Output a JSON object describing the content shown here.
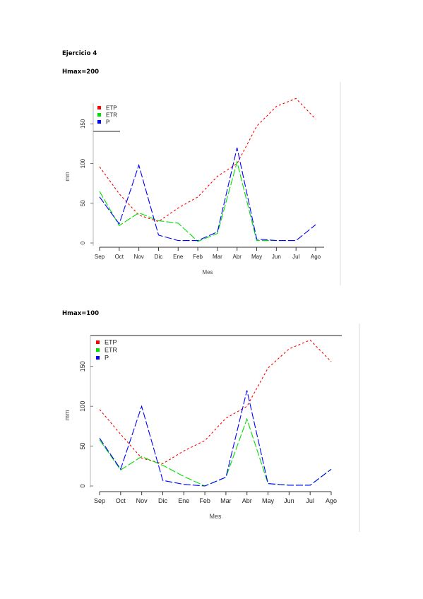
{
  "document": {
    "exercise_title": "Ejercicio 4",
    "section_1": "Hmax=200",
    "section_2": "Hmax=100"
  },
  "chart_data": [
    {
      "type": "line",
      "categories": [
        "Sep",
        "Oct",
        "Nov",
        "Dic",
        "Ene",
        "Feb",
        "Mar",
        "Abr",
        "May",
        "Jun",
        "Jul",
        "Ago"
      ],
      "xlabel": "Mes",
      "ylabel": "mm",
      "yticks": [
        0,
        50,
        100,
        150
      ],
      "ylim": [
        0,
        185
      ],
      "legend_position": "top-left",
      "grid": false,
      "series": [
        {
          "name": "ETP",
          "color": "#ff0000",
          "dash": "3,3",
          "values": [
            96,
            62,
            35,
            27,
            44,
            58,
            84,
            100,
            147,
            172,
            182,
            156
          ]
        },
        {
          "name": "ETR",
          "color": "#00dd00",
          "dash": "10,3",
          "values": [
            65,
            22,
            38,
            28,
            25,
            2,
            12,
            102,
            3,
            3,
            null,
            24
          ]
        },
        {
          "name": "P",
          "color": "#0000ff",
          "dash": "10,3",
          "values": [
            58,
            24,
            98,
            10,
            3,
            3,
            14,
            120,
            5,
            3,
            3,
            23
          ]
        }
      ]
    },
    {
      "type": "line",
      "categories": [
        "Sep",
        "Oct",
        "Nov",
        "Dic",
        "Ene",
        "Feb",
        "Mar",
        "Abr",
        "May",
        "Jun",
        "Jul",
        "Ago"
      ],
      "xlabel": "Mes",
      "ylabel": "mm",
      "yticks": [
        0,
        50,
        100,
        150
      ],
      "ylim": [
        0,
        195
      ],
      "legend_position": "top-left",
      "grid": false,
      "series": [
        {
          "name": "ETP",
          "color": "#ff0000",
          "dash": "3,3",
          "values": [
            96,
            65,
            35,
            28,
            44,
            57,
            85,
            100,
            148,
            172,
            183,
            156
          ]
        },
        {
          "name": "ETR",
          "color": "#00dd00",
          "dash": "10,3",
          "values": [
            58,
            20,
            37,
            26,
            12,
            0,
            11,
            84,
            3,
            1,
            1,
            21
          ]
        },
        {
          "name": "P",
          "color": "#0000ff",
          "dash": "10,3",
          "values": [
            60,
            21,
            100,
            7,
            2,
            0,
            11,
            120,
            3,
            1,
            1,
            21
          ]
        }
      ]
    }
  ]
}
